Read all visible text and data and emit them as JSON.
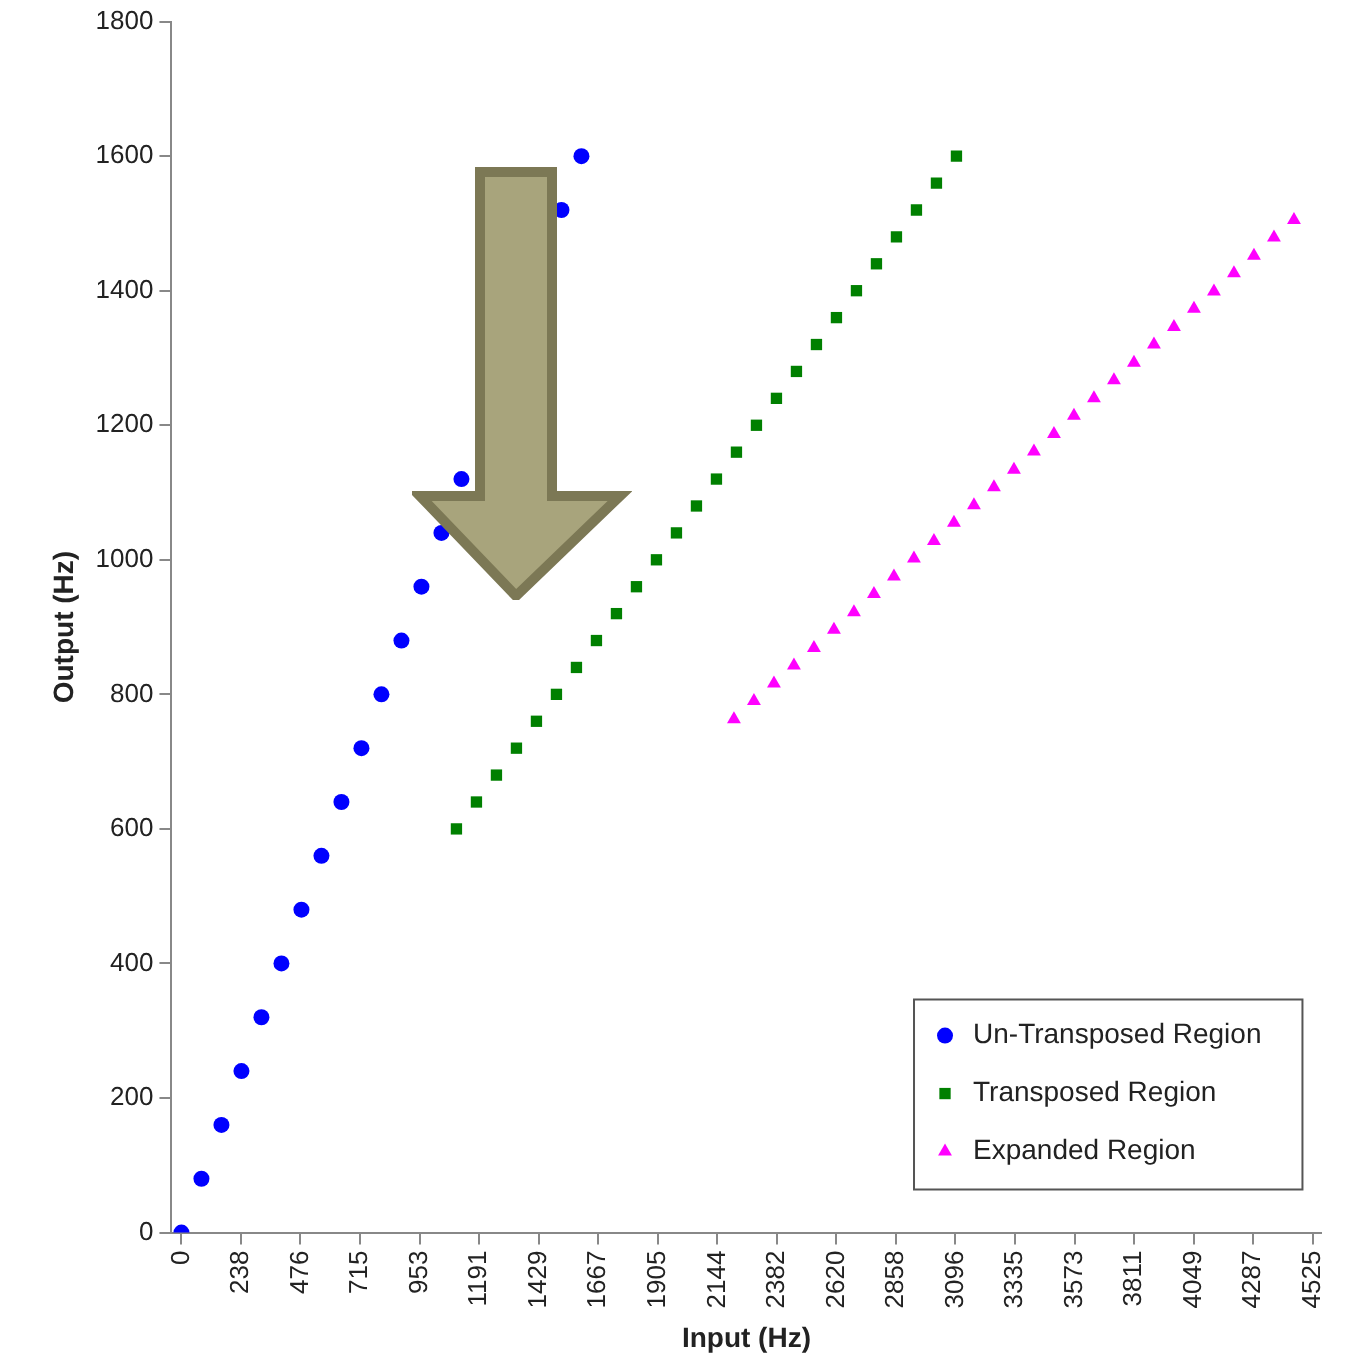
{
  "chart_data": {
    "type": "scatter",
    "xlabel": "Input (Hz)",
    "ylabel": "Output (Hz)",
    "xlim": [
      -40,
      4560
    ],
    "ylim": [
      0,
      1800
    ],
    "xticks": [
      0,
      238,
      476,
      715,
      953,
      1191,
      1429,
      1667,
      1905,
      2144,
      2382,
      2620,
      2858,
      3096,
      3335,
      3573,
      3811,
      4049,
      4287,
      4525
    ],
    "yticks": [
      0,
      200,
      400,
      600,
      800,
      1000,
      1200,
      1400,
      1600,
      1800
    ],
    "grid": false,
    "legend": "bottom right",
    "series": [
      {
        "name": "Un-Transposed Region",
        "color": "#0000ff",
        "marker": "circle",
        "x": [
          0,
          80,
          160,
          240,
          320,
          400,
          480,
          560,
          640,
          720,
          800,
          880,
          960,
          1040,
          1120,
          1200,
          1280,
          1360,
          1440,
          1520,
          1600
        ],
        "values": [
          0,
          80,
          160,
          240,
          320,
          400,
          480,
          560,
          640,
          720,
          800,
          880,
          960,
          1040,
          1120,
          null,
          null,
          null,
          null,
          1520,
          1600
        ]
      },
      {
        "name": "Transposed Region",
        "color": "#008000",
        "marker": "square",
        "x": [
          1100,
          1180,
          1260,
          1340,
          1420,
          1500,
          1580,
          1660,
          1740,
          1820,
          1900,
          1980,
          2060,
          2140,
          2220,
          2300,
          2380,
          2460,
          2540,
          2620,
          2700,
          2780,
          2860,
          2940,
          3020,
          3100
        ],
        "values": [
          600,
          640,
          680,
          720,
          760,
          800,
          840,
          880,
          920,
          960,
          1000,
          1040,
          1080,
          1120,
          1160,
          1200,
          1240,
          1280,
          1320,
          1360,
          1400,
          1440,
          1480,
          1520,
          1560,
          1600
        ]
      },
      {
        "name": "Expanded Region",
        "color": "#ff00ff",
        "marker": "triangle",
        "x": [
          2210,
          2290,
          2370,
          2450,
          2530,
          2610,
          2690,
          2770,
          2850,
          2930,
          3010,
          3090,
          3170,
          3250,
          3330,
          3410,
          3490,
          3570,
          3650,
          3730,
          3810,
          3890,
          3970,
          4050,
          4130,
          4210,
          4290,
          4370,
          4450
        ],
        "values": [
          763,
          790,
          816,
          843,
          869,
          896,
          922,
          949,
          975,
          1002,
          1028,
          1055,
          1081,
          1108,
          1134,
          1161,
          1187,
          1214,
          1240,
          1267,
          1293,
          1320,
          1346,
          1373,
          1399,
          1426,
          1452,
          1479,
          1505
        ]
      }
    ]
  }
}
